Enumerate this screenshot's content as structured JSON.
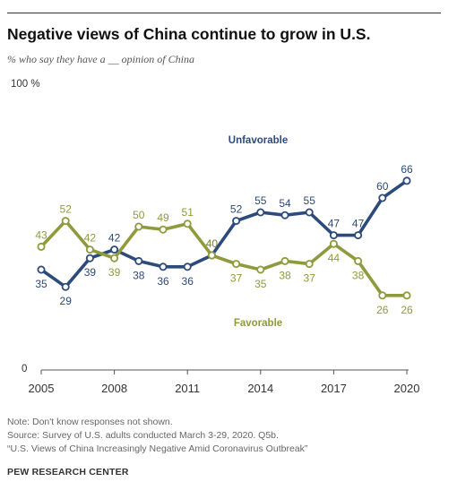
{
  "header": {
    "title": "Negative views of China continue to grow in U.S.",
    "subtitle": "% who say they have a __ opinion of China"
  },
  "chart_data": {
    "type": "line",
    "ylim": [
      0,
      100
    ],
    "y_top_label": "100 %",
    "y_bottom_label": "0",
    "x_ticks": [
      2005,
      2008,
      2011,
      2014,
      2017,
      2020
    ],
    "grid": false,
    "series": [
      {
        "name": "Unfavorable",
        "color": "#2c4a7a",
        "x": [
          2005,
          2006,
          2007,
          2008,
          2009,
          2010,
          2011,
          2012,
          2013,
          2014,
          2015,
          2016,
          2017,
          2018,
          2019,
          2020
        ],
        "values": [
          35,
          29,
          39,
          42,
          38,
          36,
          36,
          40,
          52,
          55,
          54,
          55,
          47,
          47,
          60,
          66
        ],
        "labels": [
          "35",
          "29",
          "39",
          "42",
          "38",
          "36",
          "36",
          "40",
          "52",
          "55",
          "54",
          "55",
          "47",
          "47",
          "60",
          "66"
        ]
      },
      {
        "name": "Favorable",
        "color": "#8f9a3c",
        "x": [
          2005,
          2006,
          2007,
          2008,
          2009,
          2010,
          2011,
          2012,
          2013,
          2014,
          2015,
          2016,
          2017,
          2018,
          2019,
          2020
        ],
        "values": [
          43,
          52,
          42,
          39,
          50,
          49,
          51,
          40,
          37,
          35,
          38,
          37,
          44,
          38,
          26,
          26
        ],
        "labels": [
          "43",
          "52",
          "42",
          "39",
          "50",
          "49",
          "51",
          "40",
          "37",
          "35",
          "38",
          "37",
          "44",
          "38",
          "26",
          "26"
        ]
      }
    ]
  },
  "notes": {
    "line1": "Note: Don't know responses not shown.",
    "line2": "Source: Survey of U.S. adults conducted March 3-29, 2020. Q5b.",
    "line3": "“U.S. Views of China Increasingly Negative Amid Coronavirus Outbreak”"
  },
  "credit": "PEW RESEARCH CENTER"
}
